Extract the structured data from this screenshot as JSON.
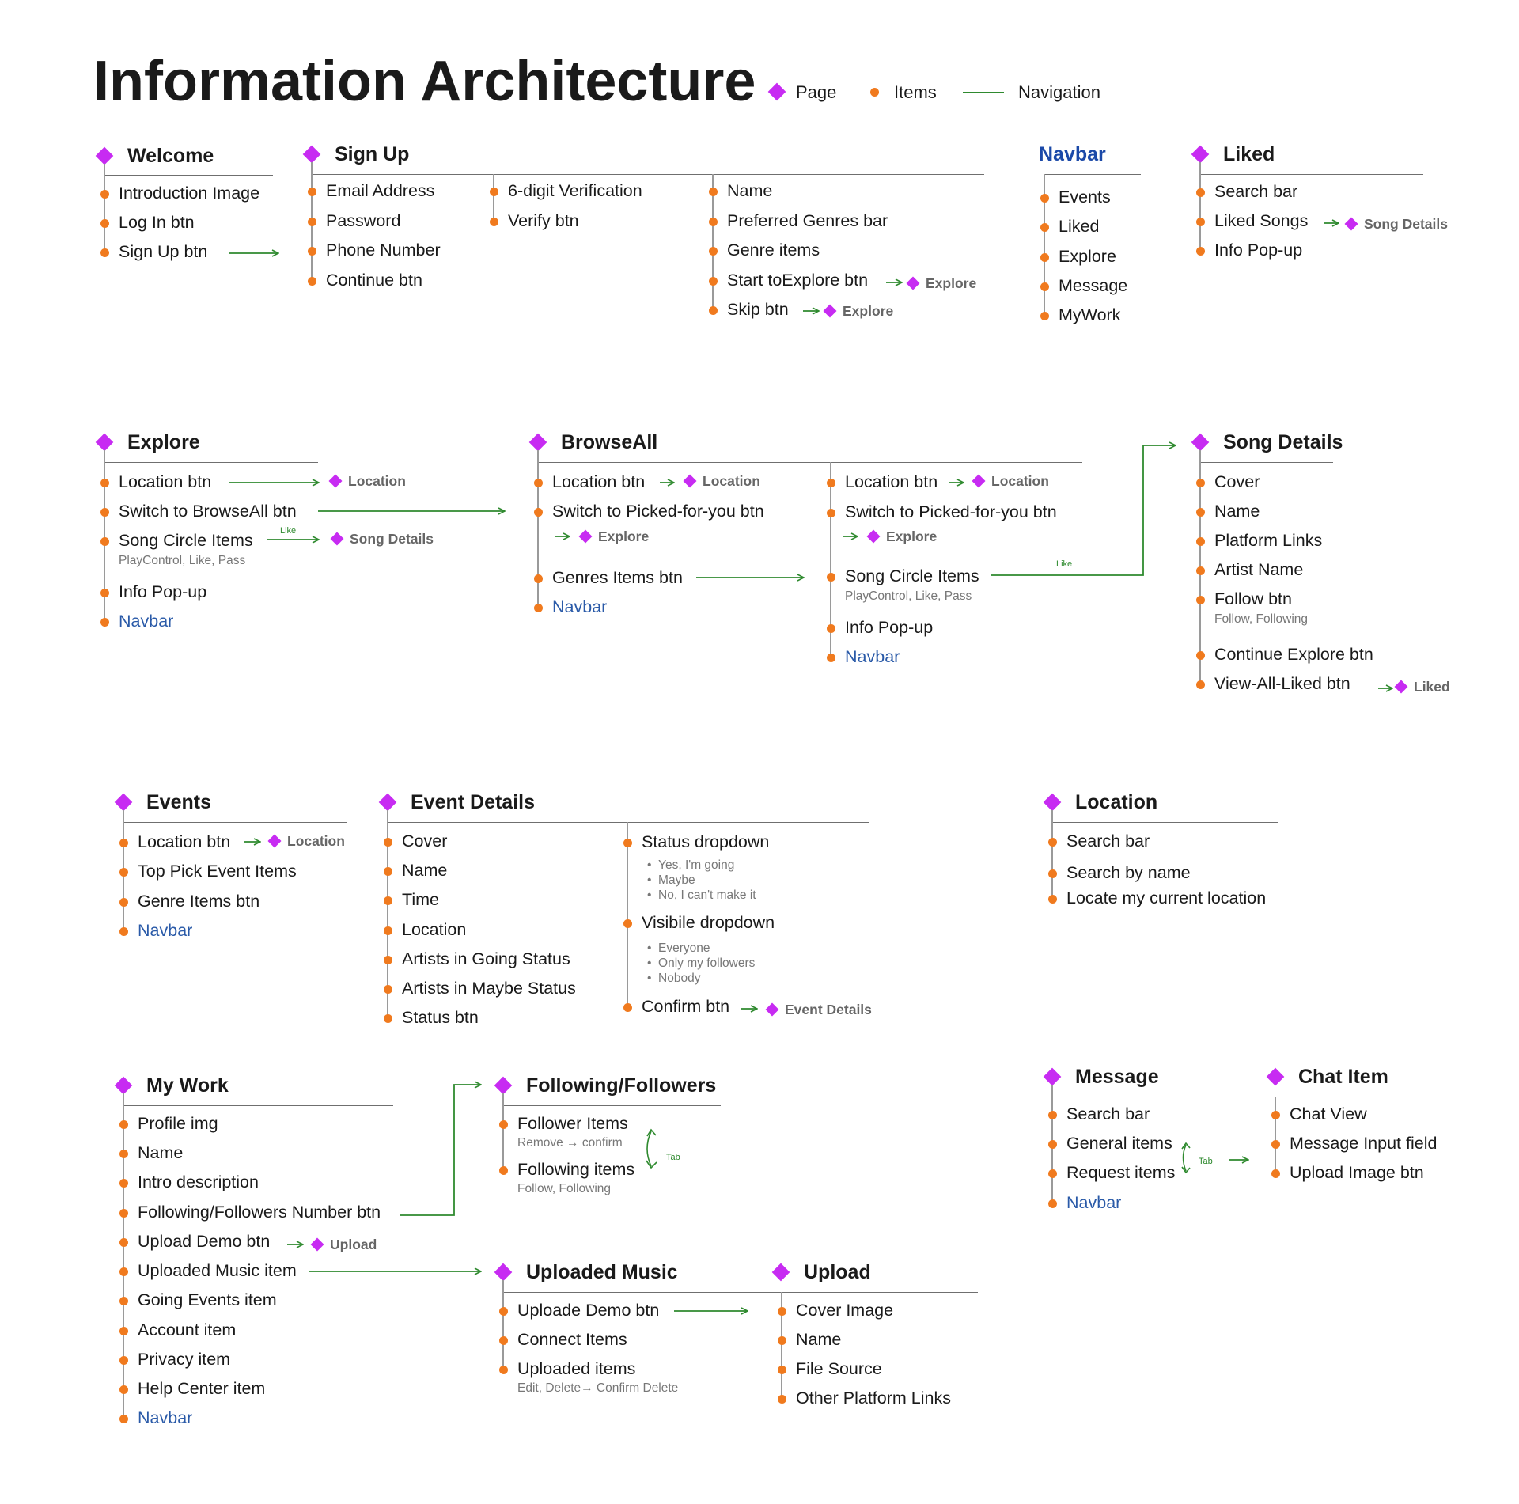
{
  "title": "Information Architecture",
  "legend": {
    "page": "Page",
    "items": "Items",
    "navigation": "Navigation"
  },
  "colors": {
    "page": "#c72bf2",
    "item": "#f07a1e",
    "navigation": "#2f8a2f",
    "navbar_link": "#2a5aa8"
  },
  "welcome": {
    "title": "Welcome",
    "items": [
      "Introduction Image",
      "Log In btn",
      "Sign Up btn"
    ]
  },
  "signup": {
    "title": "Sign Up",
    "col1": [
      "Email Address",
      "Password",
      "Phone Number",
      "Continue btn"
    ],
    "col2": [
      "6-digit Verification",
      "Verify btn"
    ],
    "col3": [
      "Name",
      "Preferred Genres bar",
      "Genre items",
      "Start toExplore btn",
      "Skip btn"
    ],
    "targets": [
      "Explore",
      "Explore"
    ]
  },
  "navbar": {
    "title": "Navbar",
    "items": [
      "Events",
      "Liked",
      "Explore",
      "Message",
      "MyWork"
    ]
  },
  "liked": {
    "title": "Liked",
    "items": [
      "Search bar",
      "Liked Songs",
      "Info Pop-up"
    ],
    "target": "Song Details"
  },
  "explore": {
    "title": "Explore",
    "items": [
      "Location btn",
      "Switch to BrowseAll btn",
      "Song Circle Items",
      "Info Pop-up",
      "Navbar"
    ],
    "sub": "PlayControl, Like, Pass",
    "like_tag": "Like",
    "targets": [
      "Location",
      "Song Details"
    ]
  },
  "browseall": {
    "title": "BrowseAll",
    "col1": [
      "Location btn",
      "Switch to Picked-for-you btn",
      "Genres Items btn",
      "Navbar"
    ],
    "col2": [
      "Location btn",
      "Switch to Picked-for-you btn",
      "Song Circle Items",
      "Info Pop-up",
      "Navbar"
    ],
    "sub": "PlayControl, Like, Pass",
    "like_tag": "Like",
    "targets": [
      "Location",
      "Explore",
      "Location",
      "Explore"
    ]
  },
  "songdetails": {
    "title": "Song Details",
    "items": [
      "Cover",
      "Name",
      "Platform Links",
      "Artist Name",
      "Follow btn",
      "Continue Explore btn",
      "View-All-Liked btn"
    ],
    "sub": "Follow, Following",
    "target": "Liked"
  },
  "events": {
    "title": "Events",
    "items": [
      "Location btn",
      "Top Pick Event Items",
      "Genre Items btn",
      "Navbar"
    ],
    "target": "Location"
  },
  "eventdetails": {
    "title": "Event Details",
    "col1": [
      "Cover",
      "Name",
      "Time",
      "Location",
      "Artists in Going Status",
      "Artists in Maybe Status",
      "Status btn"
    ],
    "status": {
      "label": "Status dropdown",
      "options": [
        "Yes, I'm going",
        "Maybe",
        "No, I can't make it"
      ]
    },
    "visible": {
      "label": "Visibile dropdown",
      "options": [
        "Everyone",
        "Only my followers",
        "Nobody"
      ]
    },
    "confirm": "Confirm btn",
    "target": "Event Details"
  },
  "location": {
    "title": "Location",
    "items": [
      "Search bar",
      "Search by name",
      "Locate my current location"
    ]
  },
  "mywork": {
    "title": "My Work",
    "items": [
      "Profile img",
      "Name",
      "Intro description",
      "Following/Followers Number btn",
      "Upload Demo btn",
      "Uploaded Music item",
      "Going Events item",
      "Account item",
      "Privacy item",
      "Help Center item",
      "Navbar"
    ],
    "target": "Upload"
  },
  "following": {
    "title": "Following/Followers",
    "items": [
      "Follower Items",
      "Following items"
    ],
    "subs": [
      "Remove → confirm",
      "Follow, Following"
    ],
    "tab": "Tab"
  },
  "message": {
    "title": "Message",
    "items": [
      "Search bar",
      "General items",
      "Request items",
      "Navbar"
    ],
    "tab": "Tab"
  },
  "chatitem": {
    "title": "Chat Item",
    "items": [
      "Chat View",
      "Message Input field",
      "Upload Image btn"
    ]
  },
  "uploadedmusic": {
    "title": "Uploaded Music",
    "items": [
      "Uploade Demo btn",
      "Connect Items",
      "Uploaded items"
    ],
    "sub": "Edit, Delete→ Confirm Delete"
  },
  "upload": {
    "title": "Upload",
    "items": [
      "Cover Image",
      "Name",
      "File Source",
      "Other Platform Links"
    ]
  }
}
